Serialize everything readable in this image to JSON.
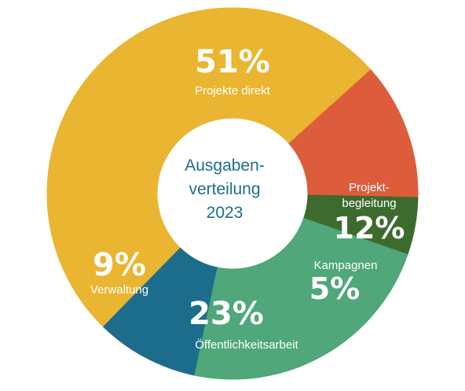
{
  "center_title": {
    "line1": "Ausgaben-",
    "line2": "verteilung",
    "line3": "2023"
  },
  "chart_data": {
    "type": "pie",
    "title": "Ausgaben-verteilung 2023",
    "categories": [
      "Projekte direkt",
      "Projekt-begleitung",
      "Kampagnen",
      "Öffentlichkeitsarbeit",
      "Verwaltung"
    ],
    "values": [
      51,
      12,
      5,
      23,
      9
    ],
    "value_labels": [
      "51%",
      "12%",
      "5%",
      "23%",
      "9%"
    ],
    "label_lines": [
      [
        "Projekte direkt"
      ],
      [
        "Projekt-",
        "begleitung"
      ],
      [
        "Kampagnen"
      ],
      [
        "Öffentlichkeitsarbeit"
      ],
      [
        "Verwaltung"
      ]
    ],
    "colors": [
      "#eab530",
      "#dc5c3c",
      "#3d6b2e",
      "#4fa77a",
      "#1b6d8b"
    ],
    "donut": true
  }
}
